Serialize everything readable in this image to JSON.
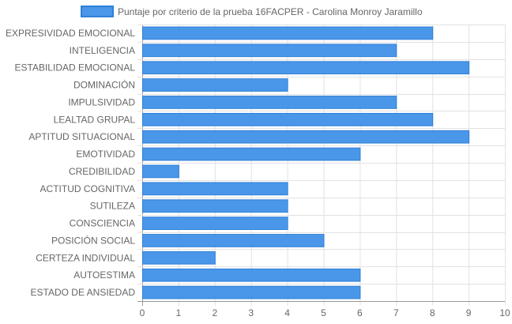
{
  "chart_data": {
    "type": "bar",
    "orientation": "horizontal",
    "legend_position": "top",
    "grid": true,
    "xlim": [
      0,
      10
    ],
    "x_ticks": [
      "0",
      "1",
      "2",
      "3",
      "4",
      "5",
      "6",
      "7",
      "8",
      "9",
      "10"
    ],
    "series": [
      {
        "name": "Puntaje por criterio de la prueba 16FACPER - Carolina Monroy Jaramillo",
        "color": "#4a96e8",
        "values": [
          8,
          7,
          9,
          4,
          7,
          8,
          9,
          6,
          1,
          4,
          4,
          4,
          5,
          2,
          6,
          6
        ]
      }
    ],
    "categories": [
      "EXPRESIVIDAD EMOCIONAL",
      "INTELIGENCIA",
      "ESTABILIDAD EMOCIONAL",
      "DOMINACIÓN",
      "IMPULSIVIDAD",
      "LEALTAD GRUPAL",
      "APTITUD SITUACIONAL",
      "EMOTIVIDAD",
      "CREDIBILIDAD",
      "ACTITUD COGNITIVA",
      "SUTILEZA",
      "CONSCIENCIA",
      "POSICIÓN SOCIAL",
      "CERTEZA INDIVIDUAL",
      "AUTOESTIMA",
      "ESTADO DE ANSIEDAD"
    ]
  },
  "colors": {
    "bar_fill": "#4a96e8",
    "bar_border": "#2f80d8",
    "grid": "#e2e2e2",
    "axis": "#999999",
    "text": "#666666"
  }
}
